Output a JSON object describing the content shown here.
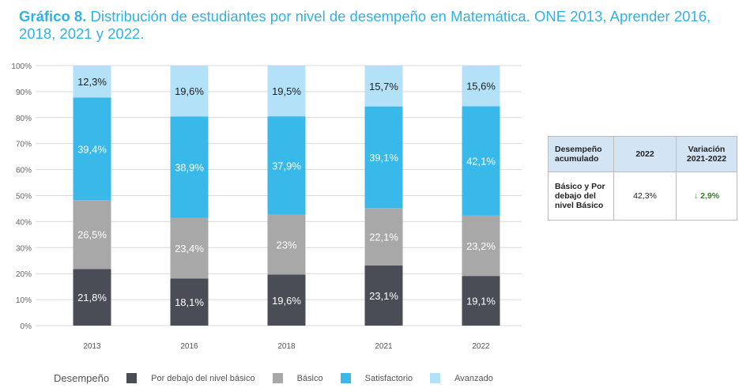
{
  "title": {
    "prefix": "Gráfico 8.",
    "text": " Distribución de estudiantes por nivel de desempeño en Matemática. ONE 2013, Aprender 2016, 2018, 2021 y 2022."
  },
  "chart_data": {
    "type": "bar",
    "stacked": true,
    "categories": [
      "2013",
      "2016",
      "2018",
      "2021",
      "2022"
    ],
    "ylim": [
      0,
      100
    ],
    "yticks": [
      "0%",
      "10%",
      "20%",
      "30%",
      "40%",
      "50%",
      "60%",
      "70%",
      "80%",
      "90%",
      "100%"
    ],
    "grid": true,
    "legend_title": "Desempeño",
    "legend_position": "bottom",
    "series": [
      {
        "name": "Por debajo del nivel básico",
        "color": "#4a4c56",
        "values": [
          21.8,
          18.1,
          19.6,
          23.1,
          19.1
        ],
        "labels": [
          "21,8%",
          "18,1%",
          "19,6%",
          "23,1%",
          "19,1%"
        ]
      },
      {
        "name": "Básico",
        "color": "#a8a8a8",
        "values": [
          26.5,
          23.4,
          23,
          22.1,
          23.2
        ],
        "labels": [
          "26,5%",
          "23,4%",
          "23%",
          "22,1%",
          "23,2%"
        ]
      },
      {
        "name": "Satisfactorio",
        "color": "#39b9ea",
        "values": [
          39.4,
          38.9,
          37.9,
          39.1,
          42.1
        ],
        "labels": [
          "39,4%",
          "38,9%",
          "37,9%",
          "39,1%",
          "42,1%"
        ]
      },
      {
        "name": "Avanzado",
        "color": "#b3e1f8",
        "values": [
          12.3,
          19.6,
          19.5,
          15.7,
          15.6
        ],
        "labels": [
          "12,3%",
          "19,6%",
          "19,5%",
          "15,7%",
          "15,6%"
        ]
      }
    ]
  },
  "table": {
    "headers": [
      "Desempeño acumulado",
      "2022",
      "Variación 2021-2022"
    ],
    "row": {
      "label": "Básico y Por debajo del nivel Básico",
      "value": "42,3%",
      "variation": "2,9%",
      "variation_icon": "arrow-down-icon",
      "variation_color": "#3a7a2a"
    }
  }
}
